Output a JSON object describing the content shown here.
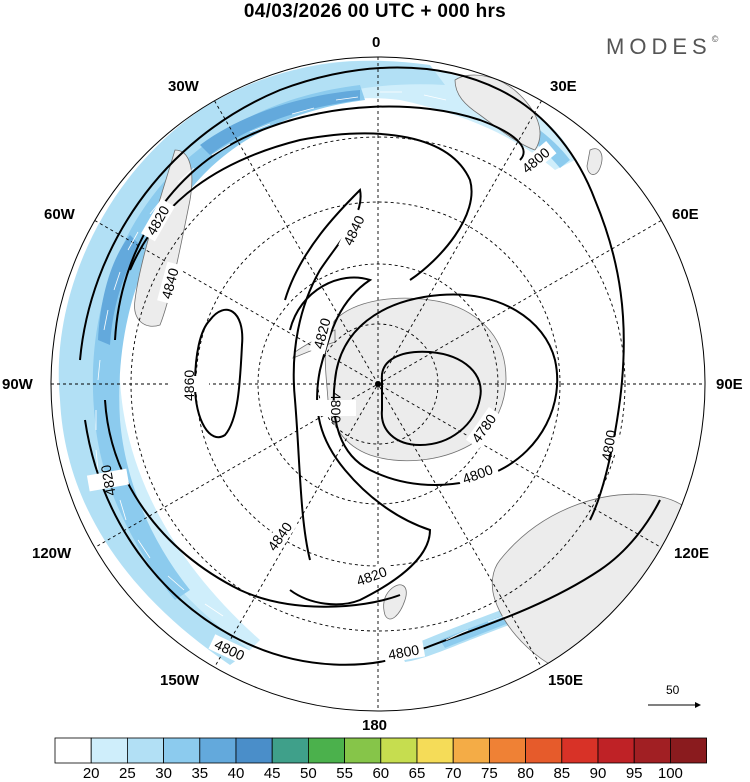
{
  "header": {
    "title": "04/03/2026  00 UTC  + 000 hrs",
    "brand": "MODES",
    "brand_mark": "©"
  },
  "map": {
    "projection": "polar stereographic (south pole)",
    "center": "South Pole",
    "longitude_labels": {
      "top": "0",
      "top_right": "30E",
      "upper_right": "60E",
      "right": "90E",
      "lower_right": "120E",
      "bottom_right": "150E",
      "bottom": "180",
      "bottom_left": "150W",
      "lower_left": "120W",
      "left": "90W",
      "upper_left": "60W",
      "top_left": "30W"
    },
    "contour_labels": [
      "4800",
      "4800",
      "4800",
      "4800",
      "4800",
      "4800",
      "4780",
      "4820",
      "4820",
      "4820",
      "4820",
      "4840",
      "4840",
      "4840",
      "4860"
    ],
    "contour_units": "gpm (500 hPa geopotential height)",
    "shaded_field": "wind speed",
    "vector_scale_label": "50",
    "colors": {
      "land": "#ececec",
      "coast": "#707070",
      "contour": "#000000"
    }
  },
  "colorbar": {
    "tick_labels": [
      "20",
      "25",
      "30",
      "35",
      "40",
      "45",
      "50",
      "55",
      "60",
      "65",
      "70",
      "75",
      "80",
      "85",
      "90",
      "95",
      "100"
    ],
    "colors": [
      "#ffffff",
      "#cfeefb",
      "#b2e0f5",
      "#8ccbee",
      "#63a9dc",
      "#4a8ec9",
      "#3fa08a",
      "#4bb14c",
      "#86c549",
      "#c6dd4f",
      "#f5dc58",
      "#f4ac46",
      "#ef8135",
      "#e65b2b",
      "#d83227",
      "#bf2226",
      "#a11f23",
      "#8a1b1e"
    ]
  }
}
